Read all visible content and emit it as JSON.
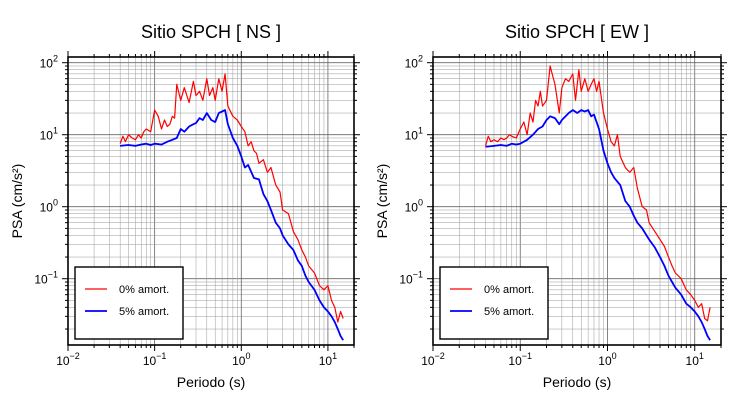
{
  "chart_data": [
    {
      "type": "line",
      "title": "Sitio SPCH [ NS ]",
      "xlabel": "Periodo (s)",
      "ylabel": "PSA (cm/s²)",
      "xscale": "log",
      "yscale": "log",
      "xlim": [
        0.01,
        20
      ],
      "ylim": [
        0.012,
        120
      ],
      "xticks": [
        {
          "value": 0.01,
          "base": "10",
          "exp": "−2"
        },
        {
          "value": 0.1,
          "base": "10",
          "exp": "−1"
        },
        {
          "value": 1,
          "base": "10",
          "exp": "0"
        },
        {
          "value": 10,
          "base": "10",
          "exp": "1"
        }
      ],
      "yticks": [
        {
          "value": 0.1,
          "base": "10",
          "exp": "−1"
        },
        {
          "value": 1,
          "base": "10",
          "exp": "0"
        },
        {
          "value": 10,
          "base": "10",
          "exp": "1"
        },
        {
          "value": 100,
          "base": "10",
          "exp": "2"
        }
      ],
      "grid": true,
      "legend": "bottom-left",
      "series": [
        {
          "name": "0% amort.",
          "color": "#ff0000",
          "x": [
            0.04,
            0.043,
            0.046,
            0.05,
            0.055,
            0.06,
            0.065,
            0.07,
            0.075,
            0.08,
            0.09,
            0.1,
            0.11,
            0.12,
            0.13,
            0.14,
            0.15,
            0.16,
            0.17,
            0.18,
            0.2,
            0.22,
            0.25,
            0.28,
            0.3,
            0.33,
            0.36,
            0.4,
            0.43,
            0.47,
            0.5,
            0.55,
            0.6,
            0.65,
            0.7,
            0.8,
            0.9,
            1.0,
            1.1,
            1.2,
            1.3,
            1.4,
            1.5,
            1.6,
            1.8,
            2.0,
            2.2,
            2.5,
            2.8,
            3.0,
            3.5,
            4.0,
            4.5,
            5.0,
            5.5,
            6.0,
            7.0,
            8.0,
            9.0,
            10.0,
            11.0,
            12.0,
            13.0,
            14.0,
            15.0
          ],
          "y": [
            7.5,
            9.5,
            8.0,
            10.0,
            9.0,
            8.5,
            10.0,
            9.0,
            11.0,
            12.0,
            11.0,
            22.0,
            18.0,
            12.0,
            16.0,
            13.0,
            14.0,
            18.0,
            17.0,
            50.0,
            30.0,
            45.0,
            28.0,
            55.0,
            35.0,
            40.0,
            30.0,
            60.0,
            35.0,
            45.0,
            30.0,
            60.0,
            40.0,
            70.0,
            25.0,
            18.0,
            16.0,
            13.0,
            11.0,
            7.0,
            8.0,
            6.0,
            5.5,
            4.0,
            4.5,
            3.0,
            3.5,
            2.0,
            1.6,
            0.9,
            0.8,
            0.45,
            0.35,
            0.25,
            0.2,
            0.15,
            0.12,
            0.08,
            0.07,
            0.08,
            0.05,
            0.04,
            0.025,
            0.035,
            0.028
          ]
        },
        {
          "name": "5% amort.",
          "color": "#0000ff",
          "x": [
            0.04,
            0.05,
            0.06,
            0.07,
            0.08,
            0.09,
            0.1,
            0.12,
            0.14,
            0.16,
            0.18,
            0.2,
            0.22,
            0.25,
            0.28,
            0.3,
            0.33,
            0.36,
            0.4,
            0.45,
            0.5,
            0.55,
            0.6,
            0.65,
            0.7,
            0.8,
            0.9,
            1.0,
            1.1,
            1.2,
            1.4,
            1.6,
            1.8,
            2.0,
            2.2,
            2.5,
            2.8,
            3.0,
            3.5,
            4.0,
            4.5,
            5.0,
            5.5,
            6.0,
            7.0,
            8.0,
            9.0,
            10.0,
            11.0,
            12.0,
            13.0,
            14.0,
            15.0
          ],
          "y": [
            7.0,
            7.2,
            7.0,
            7.3,
            7.5,
            7.2,
            7.5,
            7.3,
            8.0,
            8.5,
            9.0,
            12.0,
            11.0,
            13.0,
            14.0,
            14.5,
            17.0,
            16.0,
            20.0,
            16.0,
            15.0,
            20.0,
            21.0,
            22.0,
            14.0,
            9.0,
            7.0,
            5.0,
            3.5,
            3.8,
            2.5,
            2.4,
            1.5,
            1.2,
            0.9,
            0.6,
            0.5,
            0.4,
            0.3,
            0.25,
            0.18,
            0.15,
            0.11,
            0.09,
            0.07,
            0.05,
            0.04,
            0.035,
            0.03,
            0.025,
            0.02,
            0.016,
            0.014
          ]
        }
      ]
    },
    {
      "type": "line",
      "title": "Sitio SPCH [ EW ]",
      "xlabel": "Periodo (s)",
      "ylabel": "PSA (cm/s²)",
      "xscale": "log",
      "yscale": "log",
      "xlim": [
        0.01,
        20
      ],
      "ylim": [
        0.012,
        120
      ],
      "xticks": [
        {
          "value": 0.01,
          "base": "10",
          "exp": "−2"
        },
        {
          "value": 0.1,
          "base": "10",
          "exp": "−1"
        },
        {
          "value": 1,
          "base": "10",
          "exp": "0"
        },
        {
          "value": 10,
          "base": "10",
          "exp": "1"
        }
      ],
      "yticks": [
        {
          "value": 0.1,
          "base": "10",
          "exp": "−1"
        },
        {
          "value": 1,
          "base": "10",
          "exp": "0"
        },
        {
          "value": 10,
          "base": "10",
          "exp": "1"
        },
        {
          "value": 100,
          "base": "10",
          "exp": "2"
        }
      ],
      "grid": true,
      "legend": "bottom-left",
      "series": [
        {
          "name": "0% amort.",
          "color": "#ff0000",
          "x": [
            0.04,
            0.043,
            0.046,
            0.05,
            0.055,
            0.06,
            0.065,
            0.07,
            0.075,
            0.08,
            0.09,
            0.1,
            0.11,
            0.12,
            0.13,
            0.14,
            0.15,
            0.16,
            0.17,
            0.18,
            0.2,
            0.22,
            0.25,
            0.28,
            0.3,
            0.33,
            0.36,
            0.4,
            0.43,
            0.47,
            0.5,
            0.55,
            0.6,
            0.65,
            0.7,
            0.75,
            0.8,
            0.9,
            1.0,
            1.1,
            1.2,
            1.3,
            1.4,
            1.6,
            1.8,
            2.0,
            2.2,
            2.5,
            2.8,
            3.0,
            3.5,
            4.0,
            4.5,
            5.0,
            5.5,
            6.0,
            7.0,
            8.0,
            9.0,
            10.0,
            11.0,
            12.0,
            13.0,
            14.0,
            15.0
          ],
          "y": [
            7.0,
            9.5,
            8.0,
            8.5,
            8.0,
            9.0,
            8.5,
            9.0,
            10.0,
            9.5,
            9.0,
            12.0,
            15.0,
            10.0,
            20.0,
            15.0,
            30.0,
            25.0,
            40.0,
            25.0,
            30.0,
            90.0,
            50.0,
            20.0,
            45.0,
            60.0,
            55.0,
            70.0,
            30.0,
            80.0,
            40.0,
            60.0,
            40.0,
            50.0,
            60.0,
            40.0,
            55.0,
            20.0,
            12.0,
            8.0,
            7.0,
            10.0,
            5.0,
            3.5,
            3.0,
            3.5,
            1.8,
            1.0,
            0.9,
            0.6,
            0.45,
            0.35,
            0.28,
            0.2,
            0.15,
            0.12,
            0.1,
            0.07,
            0.06,
            0.05,
            0.04,
            0.045,
            0.028,
            0.026,
            0.04
          ]
        },
        {
          "name": "5% amort.",
          "color": "#0000ff",
          "x": [
            0.04,
            0.05,
            0.06,
            0.07,
            0.08,
            0.09,
            0.1,
            0.12,
            0.14,
            0.16,
            0.18,
            0.2,
            0.22,
            0.25,
            0.28,
            0.3,
            0.33,
            0.36,
            0.4,
            0.45,
            0.5,
            0.55,
            0.6,
            0.65,
            0.7,
            0.8,
            0.9,
            1.0,
            1.1,
            1.2,
            1.4,
            1.6,
            1.8,
            2.0,
            2.2,
            2.5,
            2.8,
            3.0,
            3.5,
            4.0,
            4.5,
            5.0,
            5.5,
            6.0,
            7.0,
            8.0,
            9.0,
            10.0,
            11.0,
            12.0,
            13.0,
            14.0,
            15.0
          ],
          "y": [
            6.8,
            7.0,
            7.2,
            7.0,
            7.5,
            7.3,
            7.5,
            8.5,
            10.0,
            12.0,
            13.0,
            16.0,
            18.0,
            17.0,
            14.0,
            16.0,
            18.0,
            20.0,
            22.0,
            20.0,
            22.0,
            21.0,
            22.0,
            18.0,
            19.0,
            12.0,
            6.0,
            4.0,
            3.0,
            2.5,
            2.0,
            1.2,
            1.0,
            0.75,
            0.6,
            0.5,
            0.4,
            0.35,
            0.27,
            0.2,
            0.15,
            0.11,
            0.09,
            0.075,
            0.06,
            0.045,
            0.04,
            0.035,
            0.03,
            0.025,
            0.02,
            0.016,
            0.014
          ]
        }
      ]
    }
  ]
}
